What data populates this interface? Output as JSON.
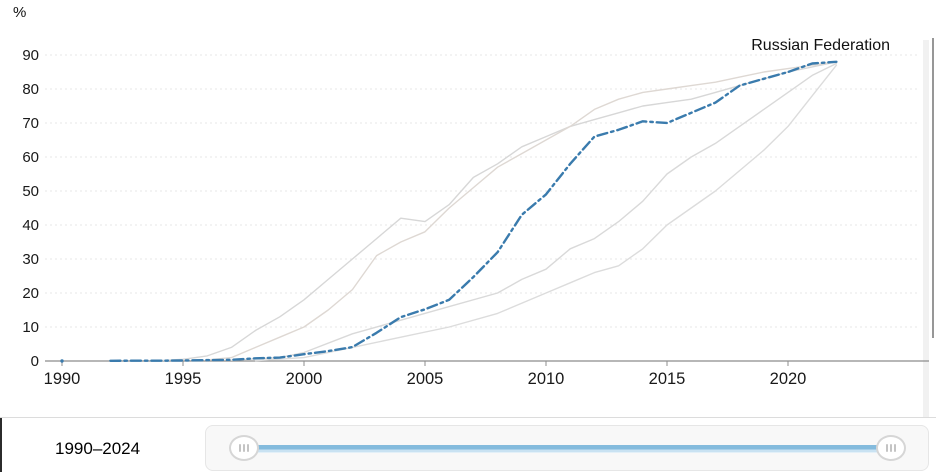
{
  "chart_data": {
    "type": "line",
    "title": "",
    "unit_label": "%",
    "end_label": "Russian Federation",
    "xlabel": "",
    "ylabel": "%",
    "xlim": [
      1990,
      2026
    ],
    "ylim": [
      0,
      90
    ],
    "x_ticks": [
      1990,
      1995,
      2000,
      2005,
      2010,
      2015,
      2020
    ],
    "y_ticks": [
      0,
      10,
      20,
      30,
      40,
      50,
      60,
      70,
      80,
      90
    ],
    "grid": true,
    "legend_position": "end-of-line-label",
    "series": [
      {
        "name": "comparison-country-1",
        "color": "#d7d7d7",
        "width": 1.4,
        "dash": "",
        "segments": [
          [
            [
              1994,
              0.1
            ],
            [
              1995,
              0.5
            ],
            [
              1996,
              1.5
            ],
            [
              1997,
              4
            ],
            [
              1998,
              9
            ],
            [
              1999,
              13
            ],
            [
              2000,
              18
            ],
            [
              2001,
              24
            ],
            [
              2002,
              30
            ],
            [
              2003,
              36
            ],
            [
              2004,
              42
            ],
            [
              2005,
              41
            ],
            [
              2006,
              46
            ],
            [
              2007,
              54
            ],
            [
              2008,
              58
            ],
            [
              2009,
              63
            ],
            [
              2010,
              66
            ],
            [
              2011,
              69
            ],
            [
              2012,
              71
            ],
            [
              2013,
              73
            ],
            [
              2014,
              75
            ],
            [
              2015,
              76
            ],
            [
              2016,
              77
            ],
            [
              2017,
              79
            ],
            [
              2018,
              81
            ],
            [
              2019,
              83
            ],
            [
              2020,
              85
            ],
            [
              2021,
              86.5
            ],
            [
              2022,
              88
            ]
          ]
        ]
      },
      {
        "name": "comparison-country-2",
        "color": "#ded8d3",
        "width": 1.4,
        "dash": "",
        "segments": [
          [
            [
              1996,
              0.3
            ],
            [
              1997,
              1
            ],
            [
              1998,
              4
            ],
            [
              1999,
              7
            ],
            [
              2000,
              10
            ],
            [
              2001,
              15
            ],
            [
              2002,
              21
            ],
            [
              2003,
              31
            ],
            [
              2004,
              35
            ],
            [
              2005,
              38
            ],
            [
              2006,
              45
            ],
            [
              2007,
              51
            ],
            [
              2008,
              57
            ],
            [
              2009,
              61
            ],
            [
              2010,
              65
            ],
            [
              2011,
              69
            ],
            [
              2012,
              74
            ],
            [
              2013,
              77
            ],
            [
              2014,
              79
            ],
            [
              2015,
              80
            ],
            [
              2016,
              81
            ],
            [
              2017,
              82
            ],
            [
              2018,
              83.5
            ],
            [
              2019,
              85
            ],
            [
              2020,
              86
            ],
            [
              2021,
              87
            ],
            [
              2022,
              88
            ]
          ]
        ]
      },
      {
        "name": "comparison-country-3",
        "color": "#d9d9d9",
        "width": 1.4,
        "dash": "",
        "segments": [
          [
            [
              1997,
              0.2
            ],
            [
              1999,
              1
            ],
            [
              2000,
              2.5
            ],
            [
              2002,
              8
            ],
            [
              2004,
              12
            ],
            [
              2006,
              16
            ],
            [
              2008,
              20
            ],
            [
              2009,
              24
            ],
            [
              2010,
              27
            ],
            [
              2011,
              33
            ],
            [
              2012,
              36
            ],
            [
              2013,
              41
            ],
            [
              2014,
              47
            ],
            [
              2015,
              55
            ],
            [
              2016,
              60
            ],
            [
              2017,
              64
            ],
            [
              2018,
              69
            ],
            [
              2019,
              74
            ],
            [
              2020,
              79
            ],
            [
              2021,
              84
            ],
            [
              2022,
              87.5
            ]
          ]
        ]
      },
      {
        "name": "comparison-country-4",
        "color": "#dcdcdc",
        "width": 1.4,
        "dash": "",
        "segments": [
          [
            [
              1998,
              0.1
            ],
            [
              2000,
              1
            ],
            [
              2002,
              4
            ],
            [
              2004,
              7
            ],
            [
              2006,
              10
            ],
            [
              2008,
              14
            ],
            [
              2010,
              20
            ],
            [
              2011,
              23
            ],
            [
              2012,
              26
            ],
            [
              2013,
              28
            ],
            [
              2014,
              33
            ],
            [
              2015,
              40
            ],
            [
              2016,
              45
            ],
            [
              2017,
              50
            ],
            [
              2018,
              56
            ],
            [
              2019,
              62
            ],
            [
              2020,
              69
            ],
            [
              2021,
              78
            ],
            [
              2022,
              87
            ]
          ]
        ]
      },
      {
        "name": "Russian Federation",
        "color": "#3a7bad",
        "width": 2.4,
        "dash": "10 4 2.5 4",
        "highlight": true,
        "segments": [
          [
            [
              1990,
              0
            ]
          ],
          [
            [
              1992,
              0.05
            ],
            [
              1993,
              0.1
            ],
            [
              1994,
              0.1
            ],
            [
              1995,
              0.15
            ],
            [
              1996,
              0.25
            ],
            [
              1997,
              0.35
            ],
            [
              1998,
              0.8
            ],
            [
              1999,
              1
            ],
            [
              2000,
              2
            ],
            [
              2001,
              2.9
            ],
            [
              2002,
              4.1
            ],
            [
              2003,
              8.3
            ],
            [
              2004,
              12.9
            ],
            [
              2005,
              15.2
            ],
            [
              2006,
              18
            ],
            [
              2007,
              24.7
            ],
            [
              2008,
              32
            ],
            [
              2009,
              43
            ],
            [
              2010,
              49
            ],
            [
              2011,
              58
            ],
            [
              2012,
              66
            ],
            [
              2013,
              68
            ],
            [
              2014,
              70.5
            ],
            [
              2015,
              70
            ],
            [
              2016,
              73
            ],
            [
              2017,
              76
            ],
            [
              2018,
              81
            ],
            [
              2019,
              83
            ],
            [
              2020,
              85
            ],
            [
              2021,
              87.5
            ],
            [
              2022,
              88
            ]
          ]
        ]
      }
    ]
  },
  "footer": {
    "range_label": "1990–2024",
    "slider": {
      "min_year": 1990,
      "max_year": 2024,
      "track_color": "#84bbdd",
      "handle_icon": "grip-vertical-lines-icon"
    }
  }
}
